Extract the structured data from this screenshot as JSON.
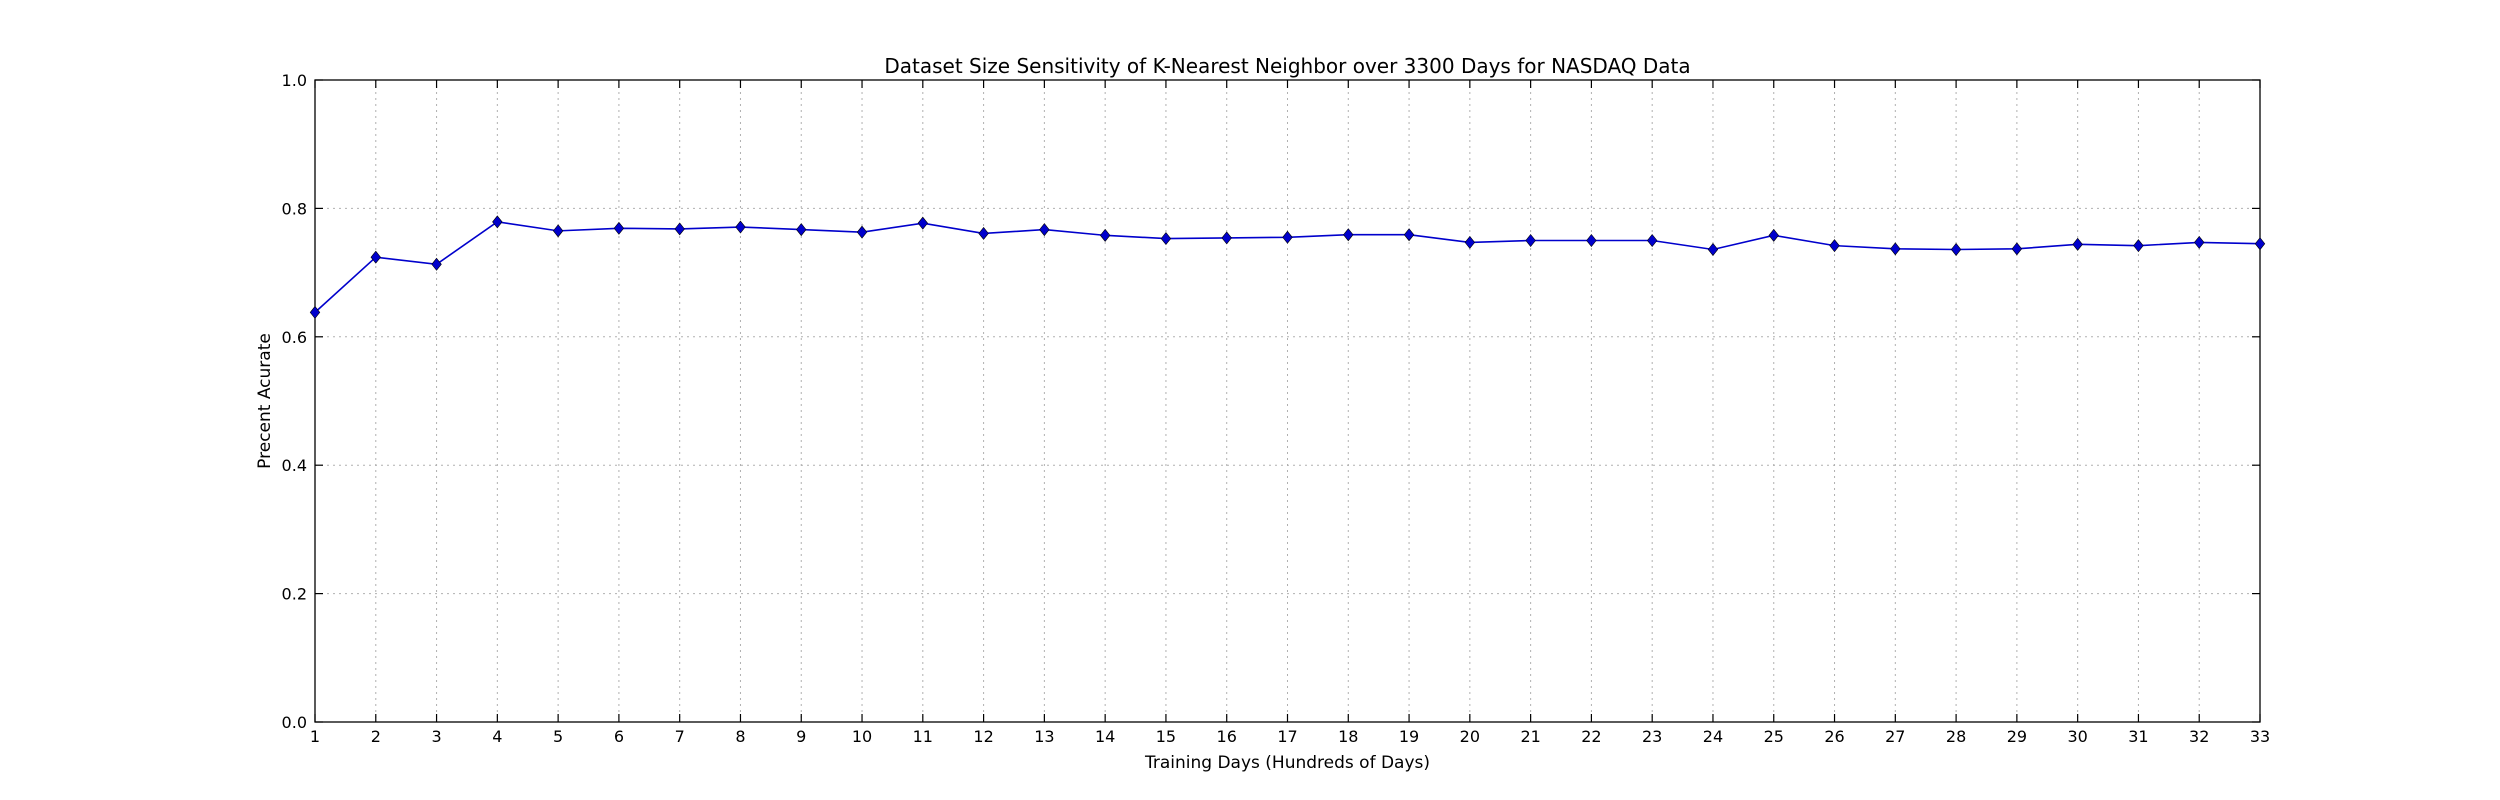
{
  "chart_data": {
    "type": "line",
    "title": "Dataset Size Sensitivity of K-Nearest Neighbor over 3300 Days for NASDAQ Data",
    "xlabel": "Training Days (Hundreds of Days)",
    "ylabel": "Precent Acurate",
    "xlim": [
      1,
      33
    ],
    "ylim": [
      0.0,
      1.0
    ],
    "grid": true,
    "x_ticks": [
      1,
      2,
      3,
      4,
      5,
      6,
      7,
      8,
      9,
      10,
      11,
      12,
      13,
      14,
      15,
      16,
      17,
      18,
      19,
      20,
      21,
      22,
      23,
      24,
      25,
      26,
      27,
      28,
      29,
      30,
      31,
      32,
      33
    ],
    "y_ticks": [
      "0.0",
      "0.2",
      "0.4",
      "0.6",
      "0.8",
      "1.0"
    ],
    "x": [
      1,
      2,
      3,
      4,
      5,
      6,
      7,
      8,
      9,
      10,
      11,
      12,
      13,
      14,
      15,
      16,
      17,
      18,
      19,
      20,
      21,
      22,
      23,
      24,
      25,
      26,
      27,
      28,
      29,
      30,
      31,
      32,
      33
    ],
    "series": [
      {
        "color": "#0000cc",
        "marker": "diamond",
        "values": [
          0.638,
          0.724,
          0.713,
          0.779,
          0.765,
          0.769,
          0.768,
          0.771,
          0.767,
          0.763,
          0.777,
          0.761,
          0.767,
          0.758,
          0.753,
          0.754,
          0.755,
          0.759,
          0.759,
          0.747,
          0.75,
          0.75,
          0.75,
          0.736,
          0.758,
          0.742,
          0.737,
          0.736,
          0.737,
          0.744,
          0.742,
          0.747,
          0.745
        ]
      }
    ]
  }
}
